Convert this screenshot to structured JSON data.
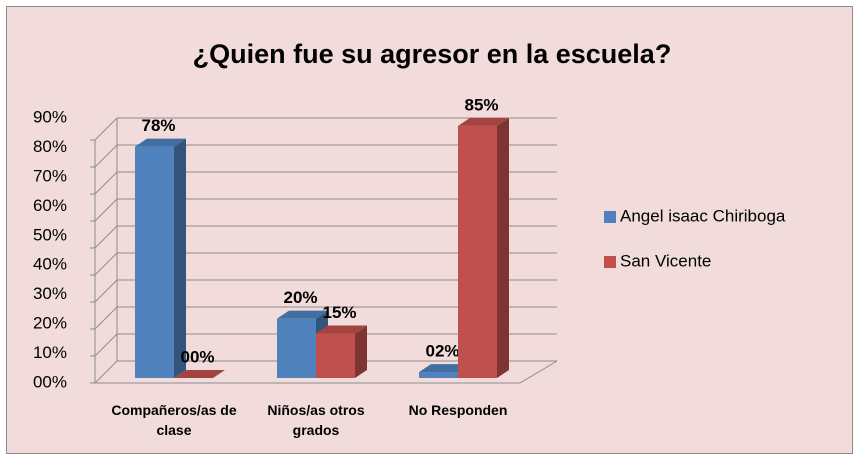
{
  "chart_data": {
    "type": "bar3d",
    "title": "¿Quien fue su agresor en la escuela?",
    "categories": [
      "Compañeros/as de clase",
      "Niños/as otros grados",
      "No Responden"
    ],
    "series": [
      {
        "name": "Angel isaac Chiriboga",
        "color": "#4f81bd",
        "values": [
          78,
          20,
          2
        ],
        "value_labels": [
          "78%",
          "20%",
          "02%"
        ]
      },
      {
        "name": "San Vicente",
        "color": "#c0504d",
        "values": [
          0,
          15,
          85
        ],
        "value_labels": [
          "00%",
          "15%",
          "85%"
        ]
      }
    ],
    "ylim": [
      0,
      90
    ],
    "yticks": [
      {
        "value": 0,
        "label": "00%"
      },
      {
        "value": 10,
        "label": "10%"
      },
      {
        "value": 20,
        "label": "20%"
      },
      {
        "value": 30,
        "label": "30%"
      },
      {
        "value": 40,
        "label": "40%"
      },
      {
        "value": 50,
        "label": "50%"
      },
      {
        "value": 60,
        "label": "60%"
      },
      {
        "value": 70,
        "label": "70%"
      },
      {
        "value": 80,
        "label": "80%"
      },
      {
        "value": 90,
        "label": "90%"
      }
    ],
    "grid": true,
    "legend": "right"
  }
}
